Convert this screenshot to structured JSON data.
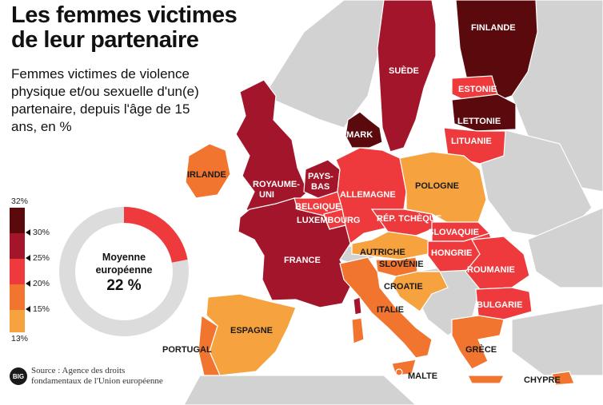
{
  "title": "Les femmes victimes de leur partenaire",
  "title_line1": "Les femmes victimes",
  "title_line2": "de leur partenaire",
  "subtitle": "Femmes victimes de violence physique et/ou sexuelle d'un(e) partenaire, depuis l'âge de 15 ans, en %",
  "legend": {
    "max_label": "32%",
    "min_label": "13%",
    "ticks": [
      "30%",
      "25%",
      "20%",
      "15%"
    ],
    "classes": [
      {
        "range": "30-32",
        "color": "#5a0a0d"
      },
      {
        "range": "25-30",
        "color": "#a3152a"
      },
      {
        "range": "20-25",
        "color": "#ee3a3c"
      },
      {
        "range": "15-20",
        "color": "#f1742f"
      },
      {
        "range": "13-15",
        "color": "#f6a23e"
      }
    ]
  },
  "average": {
    "label_line1": "Moyenne",
    "label_line2": "européenne",
    "value_text": "22 %",
    "value": 22,
    "fill_color": "#ee3a3c",
    "track_color": "#dcdcdc"
  },
  "source": {
    "logo_text": "BIG",
    "line1": "Source : Agence des droits",
    "line2": "fondamentaux de l'Union européenne"
  },
  "countries": [
    {
      "id": "finlande",
      "label": "FINLANDE",
      "color": "#5a0a0d"
    },
    {
      "id": "suede",
      "label": "SUÈDE",
      "color": "#a3152a"
    },
    {
      "id": "danemark",
      "label": "DANEMARK",
      "color": "#5a0a0d"
    },
    {
      "id": "estonie",
      "label": "ESTONIE",
      "color": "#ee3a3c"
    },
    {
      "id": "lettonie",
      "label": "LETTONIE",
      "color": "#5a0a0d"
    },
    {
      "id": "lituanie",
      "label": "LITUANIE",
      "color": "#ee3a3c"
    },
    {
      "id": "irlande",
      "label": "IRLANDE",
      "color": "#f1742f"
    },
    {
      "id": "royaume-uni",
      "label_line1": "ROYAUME-",
      "label_line2": "UNI",
      "color": "#a3152a"
    },
    {
      "id": "pays-bas",
      "label_line1": "PAYS-",
      "label_line2": "BAS",
      "color": "#a3152a"
    },
    {
      "id": "belgique",
      "label": "BELGIQUE",
      "color": "#ee3a3c"
    },
    {
      "id": "luxembourg",
      "label": "LUXEMBOURG",
      "color": "#ee3a3c"
    },
    {
      "id": "allemagne",
      "label": "ALLEMAGNE",
      "color": "#ee3a3c"
    },
    {
      "id": "pologne",
      "label": "POLOGNE",
      "color": "#f6a23e"
    },
    {
      "id": "rep-tcheque",
      "label": "RÉP. TCHÈQUE",
      "color": "#ee3a3c"
    },
    {
      "id": "slovaquie",
      "label": "SLOVAQUIE",
      "color": "#ee3a3c"
    },
    {
      "id": "autriche",
      "label": "AUTRICHE",
      "color": "#f6a23e"
    },
    {
      "id": "hongrie",
      "label": "HONGRIE",
      "color": "#ee3a3c"
    },
    {
      "id": "slovenie",
      "label": "SLOVÉNIE",
      "color": "#f1742f"
    },
    {
      "id": "croatie",
      "label": "CROATIE",
      "color": "#f6a23e"
    },
    {
      "id": "roumanie",
      "label": "ROUMANIE",
      "color": "#ee3a3c"
    },
    {
      "id": "bulgarie",
      "label": "BULGARIE",
      "color": "#ee3a3c"
    },
    {
      "id": "france",
      "label": "FRANCE",
      "color": "#a3152a"
    },
    {
      "id": "italie",
      "label": "ITALIE",
      "color": "#f1742f"
    },
    {
      "id": "espagne",
      "label": "ESPAGNE",
      "color": "#f6a23e"
    },
    {
      "id": "portugal",
      "label": "PORTUGAL",
      "color": "#f1742f"
    },
    {
      "id": "grece",
      "label": "GRÈCE",
      "color": "#f1742f"
    },
    {
      "id": "chypre",
      "label": "CHYPRE",
      "color": "#f1742f"
    },
    {
      "id": "malte",
      "label": "MALTE",
      "color": "#f1742f"
    }
  ]
}
